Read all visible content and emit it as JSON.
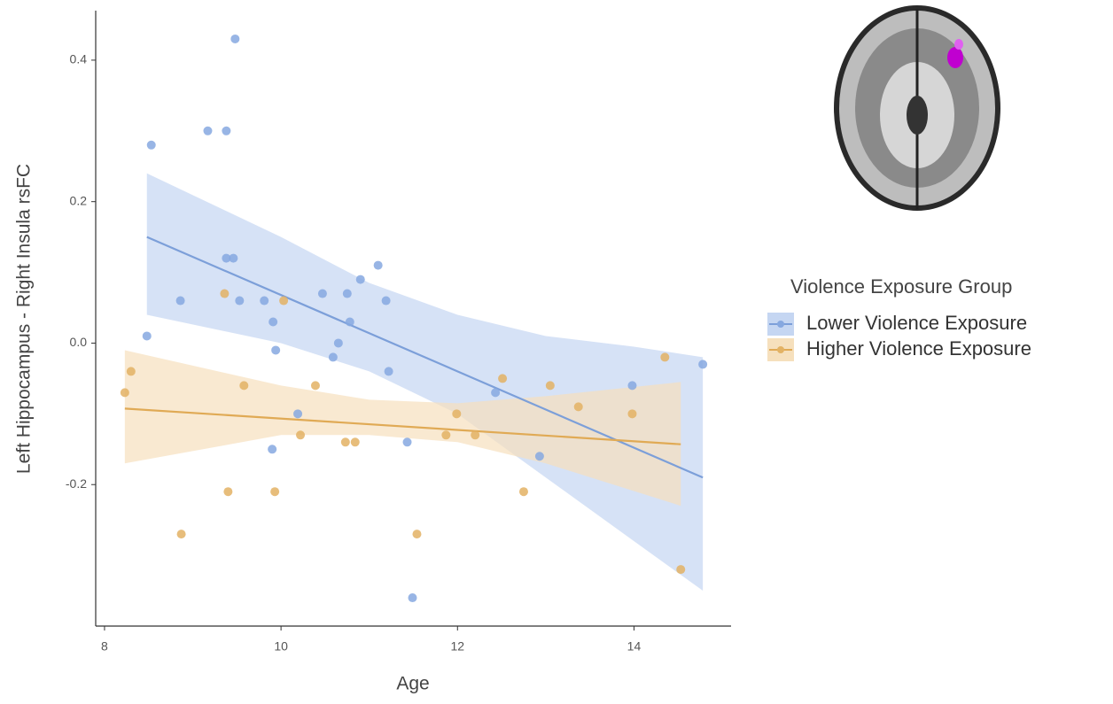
{
  "chart_data": {
    "type": "scatter",
    "x_label": "Age",
    "y_label": "Left Hippocampus - Right Insula rsFC",
    "legend_title": "Violence Exposure Group",
    "legend_position": "right",
    "xlim": [
      7.9,
      15.1
    ],
    "ylim": [
      -0.4,
      0.47
    ],
    "xticks": [
      8,
      10,
      12,
      14
    ],
    "yticks": [
      -0.2,
      {
        "value": 0,
        "label": "0.0"
      },
      0.2,
      0.4
    ],
    "series": [
      {
        "name": "Lower Violence Exposure",
        "color": "#86a8e0",
        "line_color": "#7c9fd9",
        "band_color": "#c5d6f2",
        "x": [
          8.48,
          8.53,
          8.86,
          9.17,
          9.38,
          9.48,
          9.38,
          9.46,
          9.53,
          9.81,
          9.91,
          9.94,
          9.9,
          10.19,
          10.47,
          10.59,
          10.65,
          10.75,
          10.78,
          10.9,
          11.1,
          11.19,
          11.22,
          11.43,
          11.49,
          12.43,
          12.93,
          13.98,
          14.78
        ],
        "values": [
          0.01,
          0.28,
          0.06,
          0.3,
          0.3,
          0.43,
          0.12,
          0.12,
          0.06,
          0.06,
          0.03,
          -0.01,
          -0.15,
          -0.1,
          0.07,
          -0.02,
          0.0,
          0.07,
          0.03,
          0.09,
          0.11,
          0.06,
          -0.04,
          -0.14,
          -0.36,
          -0.07,
          -0.16,
          -0.06,
          -0.03
        ],
        "fit": {
          "x": [
            8.48,
            14.78
          ],
          "values": [
            0.15,
            -0.19
          ]
        },
        "band": {
          "x": [
            8.48,
            10,
            11,
            12,
            13,
            14,
            14.78
          ],
          "upper": [
            0.24,
            0.15,
            0.085,
            0.04,
            0.01,
            -0.005,
            -0.02
          ],
          "lower": [
            0.04,
            0.0,
            -0.04,
            -0.1,
            -0.19,
            -0.28,
            -0.35
          ]
        }
      },
      {
        "name": "Higher Violence Exposure",
        "color": "#e3b264",
        "line_color": "#e0aa55",
        "band_color": "#f6e0bd",
        "x": [
          8.23,
          8.3,
          8.87,
          9.36,
          9.4,
          9.58,
          9.93,
          10.03,
          10.22,
          10.39,
          10.73,
          10.84,
          11.54,
          11.87,
          11.99,
          12.2,
          12.51,
          12.75,
          13.05,
          13.37,
          13.98,
          14.35,
          14.53
        ],
        "values": [
          -0.07,
          -0.04,
          -0.27,
          0.07,
          -0.21,
          -0.06,
          -0.21,
          0.06,
          -0.13,
          -0.06,
          -0.14,
          -0.14,
          -0.27,
          -0.13,
          -0.1,
          -0.13,
          -0.05,
          -0.21,
          -0.06,
          -0.09,
          -0.1,
          -0.02,
          -0.32
        ],
        "fit": {
          "x": [
            8.23,
            14.53
          ],
          "values": [
            -0.0925,
            -0.143
          ]
        },
        "band": {
          "x": [
            8.23,
            10,
            11,
            12,
            13,
            14.53
          ],
          "upper": [
            -0.01,
            -0.06,
            -0.08,
            -0.085,
            -0.075,
            -0.055
          ],
          "lower": [
            -0.17,
            -0.13,
            -0.13,
            -0.14,
            -0.17,
            -0.23
          ]
        }
      }
    ]
  }
}
